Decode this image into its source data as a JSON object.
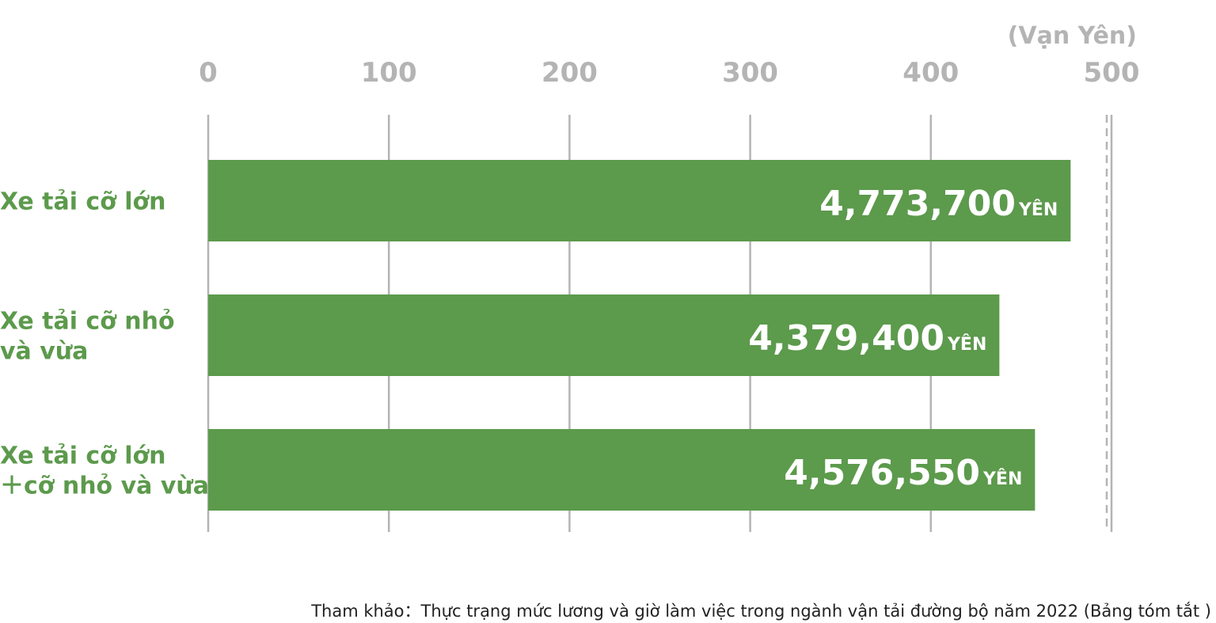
{
  "chart_data": {
    "type": "bar",
    "orientation": "horizontal",
    "unit_label": "(Vạn Yên)",
    "xlim": [
      0,
      500
    ],
    "ticks": [
      0,
      100,
      200,
      300,
      400,
      500
    ],
    "grid": true,
    "reference_line": 500,
    "bar_color": "#5c9a4c",
    "categories": [
      {
        "lines": [
          "Xe tải cỡ lớn"
        ]
      },
      {
        "lines": [
          "Xe tải cỡ nhỏ",
          "và vừa"
        ]
      },
      {
        "lines": [
          "Xe tải cỡ lớn",
          "＋cỡ nhỏ và vừa"
        ]
      }
    ],
    "values": [
      477.37,
      437.94,
      457.655
    ],
    "value_labels": [
      "4,773,700",
      "4,379,400",
      "4,576,550"
    ],
    "value_suffix": "YÊN"
  },
  "source": "Tham khảo：Thực trạng mức lương và giờ làm việc trong ngành vận tải đường bộ năm 2022 (Bảng tóm tắt )"
}
